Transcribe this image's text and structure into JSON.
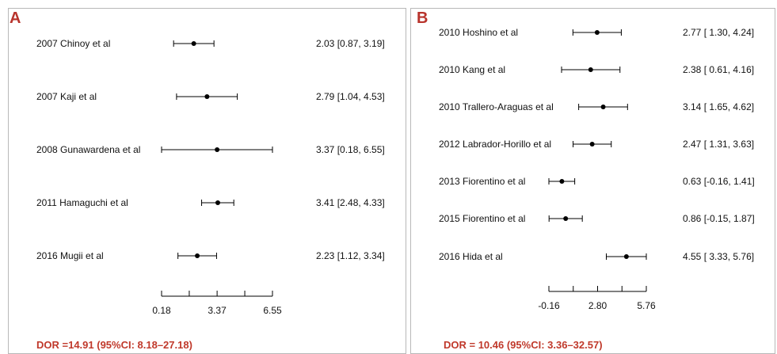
{
  "panels": [
    {
      "letter": "A",
      "dor": "DOR =14.91 (95%CI: 8.18–27.18)"
    },
    {
      "letter": "B",
      "dor": "DOR = 10.46 (95%CI: 3.36–32.57)"
    }
  ],
  "colors": {
    "accent": "#c0392b",
    "mark": "#000000",
    "border": "#b8b8b8"
  },
  "chart_data": [
    {
      "type": "scatter",
      "subtype": "forest",
      "xlim": [
        0.18,
        6.55
      ],
      "ticks": [
        0.18,
        1.77,
        3.37,
        4.96,
        6.55
      ],
      "tick_labels": [
        "0.18",
        "3.37",
        "6.55"
      ],
      "studies": [
        {
          "label": "2007 Chinoy et al",
          "est": 2.03,
          "lo": 0.87,
          "hi": 3.19,
          "text": "2.03 [0.87, 3.19]"
        },
        {
          "label": "2007 Kaji et al",
          "est": 2.79,
          "lo": 1.04,
          "hi": 4.53,
          "text": "2.79 [1.04, 4.53]"
        },
        {
          "label": "2008 Gunawardena et al",
          "est": 3.37,
          "lo": 0.18,
          "hi": 6.55,
          "text": "3.37 [0.18, 6.55]"
        },
        {
          "label": "2011 Hamaguchi et al",
          "est": 3.41,
          "lo": 2.48,
          "hi": 4.33,
          "text": "3.41 [2.48, 4.33]"
        },
        {
          "label": "2016 Mugii et al",
          "est": 2.23,
          "lo": 1.12,
          "hi": 3.34,
          "text": "2.23 [1.12, 3.34]"
        }
      ]
    },
    {
      "type": "scatter",
      "subtype": "forest",
      "xlim": [
        -0.16,
        5.76
      ],
      "ticks": [
        -0.16,
        1.32,
        2.8,
        4.28,
        5.76
      ],
      "tick_labels": [
        "-0.16",
        "2.80",
        "5.76"
      ],
      "studies": [
        {
          "label": "2010 Hoshino et al",
          "est": 2.77,
          "lo": 1.3,
          "hi": 4.24,
          "text": "2.77 [ 1.30,  4.24]"
        },
        {
          "label": "2010 Kang et al",
          "est": 2.38,
          "lo": 0.61,
          "hi": 4.16,
          "text": "2.38 [ 0.61,  4.16]"
        },
        {
          "label": "2010 Trallero-Araguas et al",
          "est": 3.14,
          "lo": 1.65,
          "hi": 4.62,
          "text": "3.14 [ 1.65,  4.62]"
        },
        {
          "label": "2012 Labrador-Horillo et al",
          "est": 2.47,
          "lo": 1.31,
          "hi": 3.63,
          "text": "2.47 [ 1.31,  3.63]"
        },
        {
          "label": "2013 Fiorentino et al",
          "est": 0.63,
          "lo": -0.16,
          "hi": 1.41,
          "text": "0.63 [-0.16,  1.41]"
        },
        {
          "label": "2015 Fiorentino et al",
          "est": 0.86,
          "lo": -0.15,
          "hi": 1.87,
          "text": "0.86 [-0.15,  1.87]"
        },
        {
          "label": "2016 Hida et al",
          "est": 4.55,
          "lo": 3.33,
          "hi": 5.76,
          "text": "4.55 [ 3.33,  5.76]"
        }
      ]
    }
  ]
}
